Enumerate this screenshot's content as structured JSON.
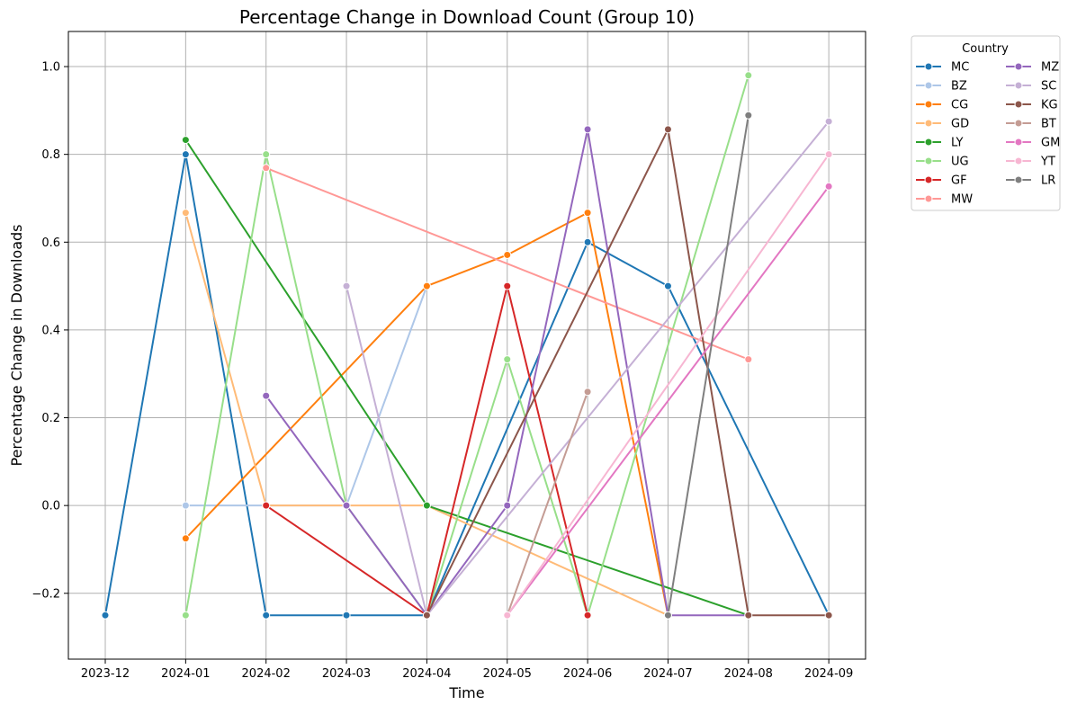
{
  "chart_data": {
    "type": "line",
    "title": "Percentage Change in Download Count (Group 10)",
    "xlabel": "Time",
    "ylabel": "Percentage Change in Downloads",
    "categories": [
      "2023-12",
      "2024-01",
      "2024-02",
      "2024-03",
      "2024-04",
      "2024-05",
      "2024-06",
      "2024-07",
      "2024-08",
      "2024-09"
    ],
    "ylim": [
      -0.35,
      1.08
    ],
    "yticks": [
      -0.2,
      0.0,
      0.2,
      0.4,
      0.6,
      0.8,
      1.0
    ],
    "ytick_labels": [
      "−0.2",
      "0.0",
      "0.2",
      "0.4",
      "0.6",
      "0.8",
      "1.0"
    ],
    "grid": true,
    "legend": {
      "title": "Country",
      "placement": "outside-top-right",
      "columns": 2
    },
    "series": [
      {
        "name": "MC",
        "color": "#1f77b4",
        "points": [
          [
            "2023-12",
            -0.25
          ],
          [
            "2024-01",
            0.8
          ],
          [
            "2024-02",
            -0.25
          ],
          [
            "2024-03",
            -0.25
          ],
          [
            "2024-04",
            -0.25
          ],
          [
            "2024-06",
            0.6
          ],
          [
            "2024-07",
            0.5
          ],
          [
            "2024-09",
            -0.25
          ]
        ]
      },
      {
        "name": "BZ",
        "color": "#aec7e8",
        "points": [
          [
            "2024-01",
            0.0
          ],
          [
            "2024-02",
            0.0
          ],
          [
            "2024-03",
            0.0
          ],
          [
            "2024-04",
            0.5
          ]
        ]
      },
      {
        "name": "CG",
        "color": "#ff7f0e",
        "points": [
          [
            "2024-01",
            -0.075
          ],
          [
            "2024-04",
            0.5
          ],
          [
            "2024-05",
            0.571
          ],
          [
            "2024-06",
            0.667
          ],
          [
            "2024-07",
            -0.25
          ]
        ]
      },
      {
        "name": "GD",
        "color": "#ffbb78",
        "points": [
          [
            "2024-01",
            0.667
          ],
          [
            "2024-02",
            0.0
          ],
          [
            "2024-04",
            0.0
          ],
          [
            "2024-07",
            -0.25
          ]
        ]
      },
      {
        "name": "LY",
        "color": "#2ca02c",
        "points": [
          [
            "2024-01",
            0.833
          ],
          [
            "2024-04",
            0.0
          ],
          [
            "2024-08",
            -0.25
          ]
        ]
      },
      {
        "name": "UG",
        "color": "#98df8a",
        "points": [
          [
            "2024-01",
            -0.25
          ],
          [
            "2024-02",
            0.8
          ],
          [
            "2024-03",
            0.0
          ],
          [
            "2024-04",
            -0.25
          ],
          [
            "2024-05",
            0.333
          ],
          [
            "2024-06",
            -0.25
          ],
          [
            "2024-08",
            0.98
          ]
        ]
      },
      {
        "name": "GF",
        "color": "#d62728",
        "points": [
          [
            "2024-02",
            0.0
          ],
          [
            "2024-04",
            -0.25
          ],
          [
            "2024-05",
            0.5
          ],
          [
            "2024-06",
            -0.25
          ]
        ]
      },
      {
        "name": "MW",
        "color": "#ff9896",
        "points": [
          [
            "2024-02",
            0.769
          ],
          [
            "2024-08",
            0.333
          ]
        ]
      },
      {
        "name": "MZ",
        "color": "#9467bd",
        "points": [
          [
            "2024-02",
            0.25
          ],
          [
            "2024-03",
            0.0
          ],
          [
            "2024-04",
            -0.25
          ],
          [
            "2024-05",
            0.0
          ],
          [
            "2024-06",
            0.857
          ],
          [
            "2024-07",
            -0.25
          ],
          [
            "2024-08",
            -0.25
          ]
        ]
      },
      {
        "name": "SC",
        "color": "#c5b0d5",
        "points": [
          [
            "2024-03",
            0.5
          ],
          [
            "2024-04",
            -0.25
          ],
          [
            "2024-09",
            0.875
          ]
        ]
      },
      {
        "name": "KG",
        "color": "#8c564b",
        "points": [
          [
            "2024-04",
            -0.25
          ],
          [
            "2024-07",
            0.857
          ],
          [
            "2024-08",
            -0.25
          ],
          [
            "2024-09",
            -0.25
          ]
        ]
      },
      {
        "name": "BT",
        "color": "#c49c94",
        "points": [
          [
            "2024-05",
            -0.25
          ],
          [
            "2024-06",
            0.259
          ]
        ]
      },
      {
        "name": "GM",
        "color": "#e377c2",
        "points": [
          [
            "2024-05",
            -0.25
          ],
          [
            "2024-09",
            0.727
          ]
        ]
      },
      {
        "name": "YT",
        "color": "#f7b6d2",
        "points": [
          [
            "2024-05",
            -0.25
          ],
          [
            "2024-09",
            0.8
          ]
        ]
      },
      {
        "name": "LR",
        "color": "#7f7f7f",
        "points": [
          [
            "2024-07",
            -0.25
          ],
          [
            "2024-08",
            0.889
          ]
        ]
      }
    ]
  }
}
